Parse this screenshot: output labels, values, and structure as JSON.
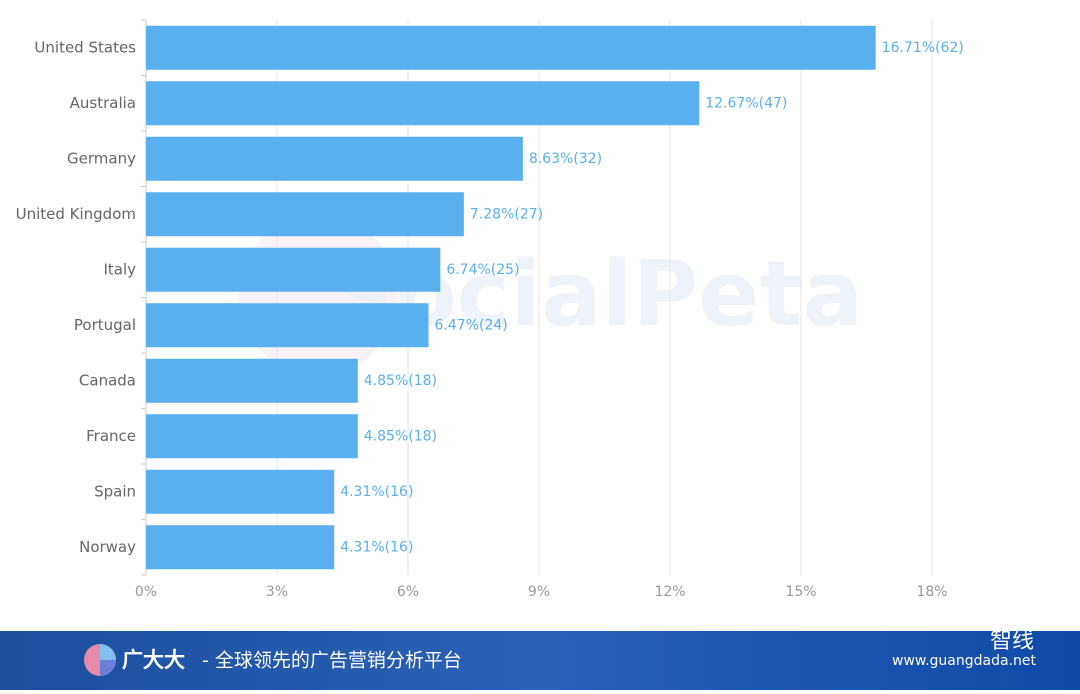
{
  "chart_data": {
    "type": "bar",
    "orientation": "horizontal",
    "categories": [
      "United States",
      "Australia",
      "Germany",
      "United Kingdom",
      "Italy",
      "Portugal",
      "Canada",
      "France",
      "Spain",
      "Norway"
    ],
    "values": [
      16.71,
      12.67,
      8.63,
      7.28,
      6.74,
      6.47,
      4.85,
      4.85,
      4.31,
      4.31
    ],
    "value_labels": [
      "16.71%(62)",
      "12.67%(47)",
      "8.63%(32)",
      "7.28%(27)",
      "6.74%(25)",
      "6.47%(24)",
      "4.85%(18)",
      "4.85%(18)",
      "4.31%(16)",
      "4.31%(16)"
    ],
    "color": "#5aafef",
    "xlim": [
      0,
      18
    ],
    "xticks": [
      {
        "value": 0,
        "label": "0%"
      },
      {
        "value": 3,
        "label": "3%"
      },
      {
        "value": 6,
        "label": "6%"
      },
      {
        "value": 9,
        "label": "9%"
      },
      {
        "value": 12,
        "label": "12%"
      },
      {
        "value": 15,
        "label": "15%"
      },
      {
        "value": 18,
        "label": "18%"
      }
    ],
    "grid": true,
    "watermark": "SocialPeta"
  },
  "footer": {
    "brand": "广大大",
    "slogan": "- 全球领先的广告营销分析平台",
    "account": "智线",
    "url": "www.guangdada.net"
  }
}
